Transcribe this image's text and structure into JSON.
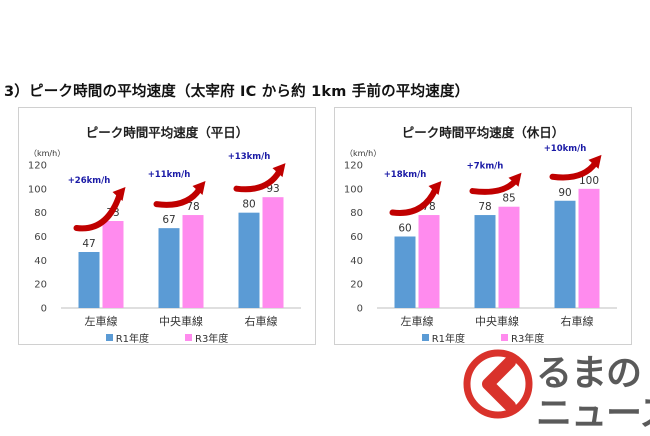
{
  "heading": "3）ピーク時間の平均速度（太宰府 IC から約 1km 手前の平均速度）",
  "colors": {
    "r1": "#5b9bd5",
    "r3": "#ff8bee",
    "arrow": "#c00000",
    "delta": "#1a1aa6"
  },
  "logo": {
    "line1": "るまの",
    "line2": "ニュース"
  },
  "chart_data": [
    {
      "type": "bar",
      "title": "ピーク時間平均速度（平日）",
      "unit": "（km/h）",
      "ylim": [
        0,
        120
      ],
      "yticks": [
        "0",
        "20",
        "40",
        "60",
        "80",
        "100",
        "120"
      ],
      "categories": [
        "左車線",
        "中央車線",
        "右車線"
      ],
      "series": [
        {
          "name": "R1年度",
          "values": [
            47,
            67,
            80
          ]
        },
        {
          "name": "R3年度",
          "values": [
            73,
            78,
            93
          ]
        }
      ],
      "annotations": [
        "+26km/h",
        "+11km/h",
        "+13km/h"
      ],
      "legend": "bottom",
      "grid": false
    },
    {
      "type": "bar",
      "title": "ピーク時間平均速度（休日）",
      "unit": "（km/h）",
      "ylim": [
        0,
        120
      ],
      "yticks": [
        "0",
        "20",
        "40",
        "60",
        "80",
        "100",
        "120"
      ],
      "categories": [
        "左車線",
        "中央車線",
        "右車線"
      ],
      "series": [
        {
          "name": "R1年度",
          "values": [
            60,
            78,
            90
          ]
        },
        {
          "name": "R3年度",
          "values": [
            78,
            85,
            100
          ]
        }
      ],
      "annotations": [
        "+18km/h",
        "+7km/h",
        "+10km/h"
      ],
      "legend": "bottom",
      "grid": false
    }
  ]
}
